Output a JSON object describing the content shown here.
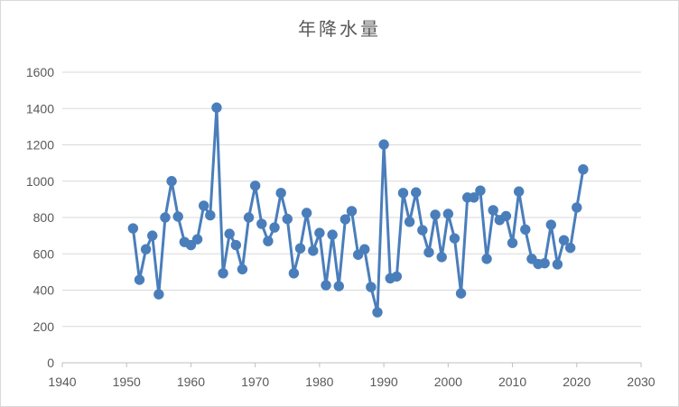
{
  "chart_data": {
    "type": "scatter",
    "title": "年降水量",
    "xlabel": "",
    "ylabel": "",
    "xlim": [
      1940,
      2030
    ],
    "ylim": [
      0,
      1600
    ],
    "xticks": [
      1940,
      1950,
      1960,
      1970,
      1980,
      1990,
      2000,
      2010,
      2020,
      2030
    ],
    "yticks": [
      0,
      200,
      400,
      600,
      800,
      1000,
      1200,
      1400,
      1600
    ],
    "grid": "horizontal",
    "legend": "none",
    "series_color": "#4a7ebb",
    "series": [
      {
        "x": [
          1951,
          1952,
          1953,
          1954,
          1955,
          1956,
          1957,
          1958,
          1959,
          1960,
          1961,
          1962,
          1963,
          1964,
          1965,
          1966,
          1967,
          1968,
          1969,
          1970,
          1971,
          1972,
          1973,
          1974,
          1975,
          1976,
          1977,
          1978,
          1979,
          1980,
          1981,
          1982,
          1983,
          1984,
          1985,
          1986,
          1987,
          1988,
          1989,
          1990,
          1991,
          1992,
          1993,
          1994,
          1995,
          1996,
          1997,
          1998,
          1999,
          2000,
          2001,
          2002,
          2003,
          2004,
          2005,
          2006,
          2007,
          2008,
          2009,
          2010,
          2011,
          2012,
          2013,
          2014,
          2015,
          2016,
          2017,
          2018,
          2019,
          2020,
          2021
        ],
        "y": [
          740,
          457,
          625,
          700,
          377,
          800,
          1000,
          805,
          665,
          648,
          680,
          865,
          812,
          1405,
          493,
          710,
          648,
          515,
          800,
          975,
          765,
          670,
          745,
          935,
          792,
          493,
          630,
          825,
          617,
          715,
          427,
          705,
          422,
          790,
          835,
          595,
          625,
          417,
          278,
          1202,
          465,
          475,
          935,
          776,
          938,
          730,
          608,
          815,
          582,
          820,
          685,
          382,
          910,
          910,
          948,
          572,
          840,
          786,
          808,
          660,
          943,
          734,
          572,
          544,
          548,
          760,
          542,
          675,
          633,
          855,
          1065
        ]
      }
    ]
  }
}
